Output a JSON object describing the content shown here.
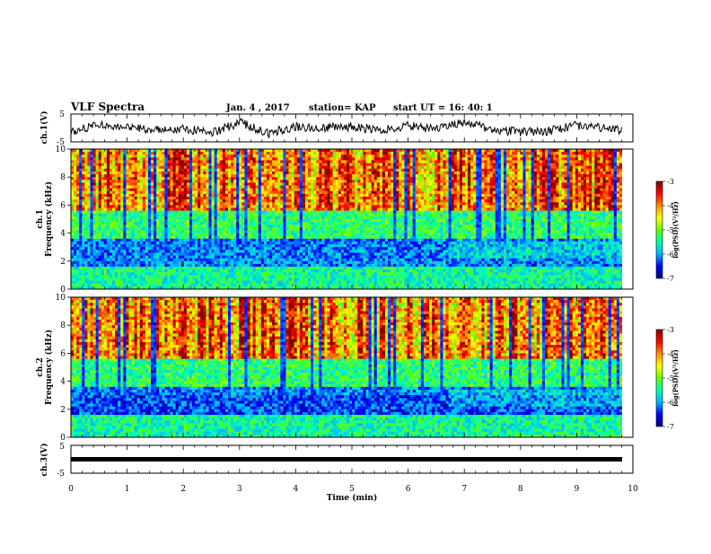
{
  "header": {
    "title": "VLF Spectra",
    "date": "Jan. 4 , 2017",
    "station": "station= KAP",
    "start_time": "start  UT =   16: 40: 1"
  },
  "chart_data": [
    {
      "type": "line",
      "panel": "ch.1 waveform",
      "ylabel": "ch.1(V)",
      "ylim": [
        -5,
        5
      ],
      "yticks": [
        "5",
        "-5"
      ],
      "xlim": [
        0,
        10
      ],
      "x_extent": [
        0,
        9.8
      ],
      "series": [
        {
          "x": [
            0,
            0.5,
            1,
            1.5,
            2,
            2.5,
            3,
            3.5,
            4,
            4.5,
            5,
            5.5,
            6,
            6.5,
            7,
            7.5,
            8,
            8.5,
            9,
            9.5,
            9.8
          ],
          "values": [
            -1.5,
            1.5,
            0.5,
            -1.0,
            0.0,
            -2.0,
            2.0,
            -2.0,
            0.5,
            0.0,
            0.5,
            -1.0,
            1.0,
            -0.5,
            2.0,
            -0.5,
            -1.5,
            -1.0,
            1.0,
            0.0,
            -1.0
          ]
        }
      ]
    },
    {
      "type": "heatmap",
      "panel": "ch.1 spectrogram",
      "ylabel": "ch.1\nFrequency (kHz)",
      "ylim": [
        0,
        10
      ],
      "yticks": [
        "0",
        "2",
        "4",
        "6",
        "8",
        "10"
      ],
      "xlim": [
        0,
        10
      ],
      "colorbar": {
        "label": "log(PSD)(V²/Hz)",
        "range": [
          -7,
          -3
        ],
        "ticks": [
          "-3",
          "-4",
          "-5",
          "-6",
          "-7"
        ]
      }
    },
    {
      "type": "heatmap",
      "panel": "ch.2 spectrogram",
      "ylabel": "ch.2\nFrequency (kHz)",
      "ylim": [
        0,
        10
      ],
      "yticks": [
        "0",
        "2",
        "4",
        "6",
        "8",
        "10"
      ],
      "xlim": [
        0,
        10
      ],
      "colorbar": {
        "label": "log(PSD)(V²/Hz)",
        "range": [
          -7,
          -3
        ],
        "ticks": [
          "-3",
          "-4",
          "-5",
          "-6",
          "-7"
        ]
      }
    },
    {
      "type": "line",
      "panel": "ch.3 waveform",
      "ylabel": "ch.3(V)",
      "ylim": [
        -5,
        5
      ],
      "yticks": [
        "5",
        "-5"
      ],
      "xlim": [
        0,
        10
      ],
      "series": [
        {
          "x": [
            0,
            9.8
          ],
          "values": [
            0,
            0
          ]
        }
      ]
    }
  ],
  "xaxis": {
    "label": "Time (min)",
    "ticks": [
      "0",
      "1",
      "2",
      "3",
      "4",
      "5",
      "6",
      "7",
      "8",
      "9",
      "10"
    ]
  },
  "colors": {
    "scale": [
      "#000080",
      "#0000ff",
      "#00b4ff",
      "#00ffb4",
      "#66ff00",
      "#ffff00",
      "#ff8c00",
      "#ff0000",
      "#800000"
    ]
  }
}
